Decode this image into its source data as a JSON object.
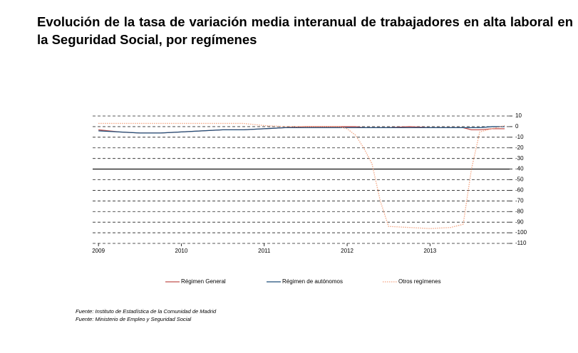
{
  "chart_data": {
    "type": "line",
    "title": "Evolución de la tasa de variación media interanual de trabajadores en alta laboral en la Seguridad Social, por  regímenes",
    "x": [
      2009,
      2009.25,
      2009.5,
      2009.75,
      2010,
      2010.25,
      2010.5,
      2010.75,
      2011,
      2011.25,
      2011.5,
      2011.75,
      2011.9,
      2012,
      2012.1,
      2012.2,
      2012.3,
      2012.4,
      2012.5,
      2012.75,
      2013,
      2013.25,
      2013.4,
      2013.5,
      2013.6,
      2013.75,
      2013.9
    ],
    "xlim": [
      2008.93,
      2013.96
    ],
    "xticks": [
      2009,
      2010,
      2011,
      2012,
      2013
    ],
    "ylim": [
      -110,
      10
    ],
    "yticks": [
      10,
      0,
      -10,
      -20,
      -30,
      -40,
      -50,
      -60,
      -70,
      -80,
      -90,
      -100,
      -110
    ],
    "grid": true,
    "axis_line_at": -40,
    "legend": "bottom",
    "series": [
      {
        "name": "Régimen General",
        "color": "#c0504d",
        "line_style": "solid",
        "values": [
          -3,
          -5,
          -6,
          -6,
          -5,
          -4,
          -3,
          -3,
          -2,
          -1,
          0,
          0,
          0,
          0,
          0,
          -1,
          -1,
          -1,
          -1,
          0,
          -1,
          -1,
          -1,
          -3,
          -3,
          -2,
          -2
        ]
      },
      {
        "name": "Régimen de autónomos",
        "color": "#1f4e79",
        "line_style": "solid",
        "values": [
          -4,
          -5,
          -6,
          -6,
          -5,
          -4,
          -3,
          -3,
          -2,
          -1,
          -1,
          -1,
          -1,
          -1,
          -1,
          -1,
          -1,
          -1,
          -1,
          -1,
          -1,
          -1,
          -1,
          -1,
          -1,
          0,
          0
        ]
      },
      {
        "name": "Otros regímenes",
        "color": "#f4a582",
        "line_style": "dotted",
        "values": [
          3,
          3,
          3,
          3,
          3,
          3,
          3,
          3,
          1,
          0,
          0,
          0,
          0,
          -2,
          -8,
          -20,
          -35,
          -70,
          -94,
          -95,
          -96,
          -95,
          -92,
          -40,
          -5,
          -2,
          1
        ]
      }
    ],
    "sources": [
      "Fuente: Instituto de Estadística de la Comunidad de Madrid",
      "Fuente: Ministerio de Empleo y Seguridad Social"
    ]
  }
}
